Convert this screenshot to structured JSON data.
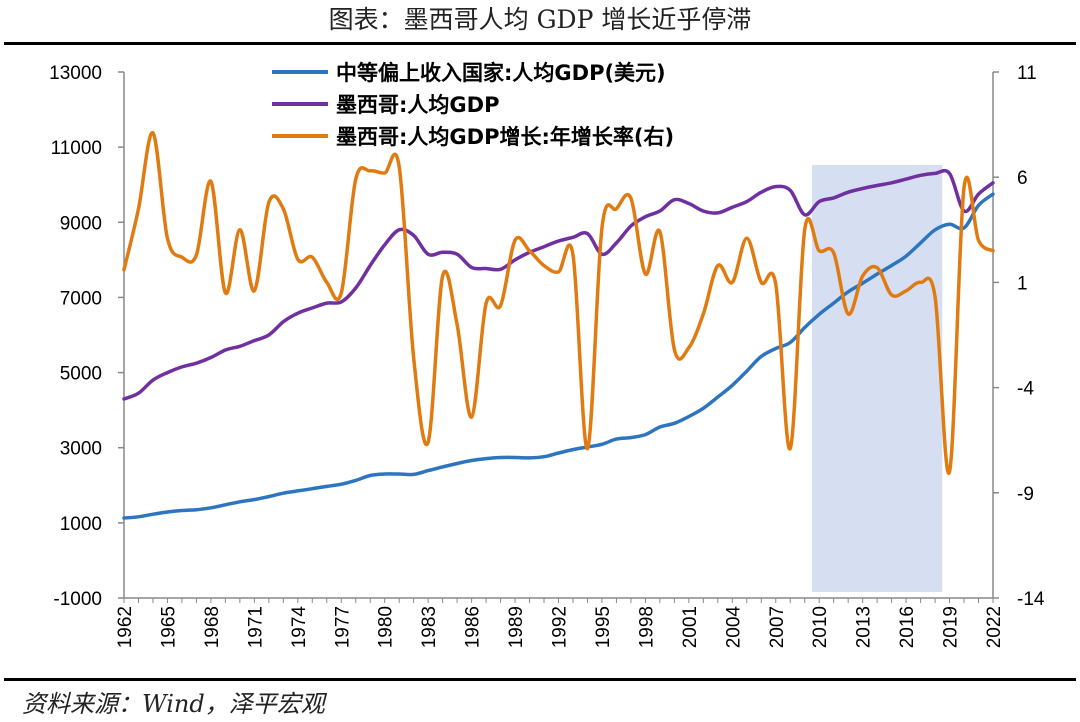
{
  "title": "图表：墨西哥人均 GDP 增长近乎停滞",
  "source": "资料来源：Wind，泽平宏观",
  "colors": {
    "blue": "#2E75C0",
    "purple": "#7030A0",
    "orange": "#E07B12",
    "band": "#D6DFF2"
  },
  "chart_data": {
    "type": "line",
    "x": [
      1962,
      1963,
      1964,
      1965,
      1966,
      1967,
      1968,
      1969,
      1970,
      1971,
      1972,
      1973,
      1974,
      1975,
      1976,
      1977,
      1978,
      1979,
      1980,
      1981,
      1982,
      1983,
      1984,
      1985,
      1986,
      1987,
      1988,
      1989,
      1990,
      1991,
      1992,
      1993,
      1994,
      1995,
      1996,
      1997,
      1998,
      1999,
      2000,
      2001,
      2002,
      2003,
      2004,
      2005,
      2006,
      2007,
      2008,
      2009,
      2010,
      2011,
      2012,
      2013,
      2014,
      2015,
      2016,
      2017,
      2018,
      2019,
      2020,
      2021,
      2022
    ],
    "x_tick_labels": [
      "1962",
      "1965",
      "1968",
      "1971",
      "1974",
      "1977",
      "1980",
      "1983",
      "1986",
      "1989",
      "1992",
      "1995",
      "1998",
      "2001",
      "2004",
      "2007",
      "2010",
      "2013",
      "2016",
      "2019",
      "2022"
    ],
    "y_left": {
      "ticks": [
        "13000",
        "11000",
        "9000",
        "7000",
        "5000",
        "3000",
        "1000",
        "-1000"
      ],
      "range": [
        -1000,
        13000
      ]
    },
    "y_right": {
      "ticks": [
        "11",
        "6",
        "1",
        "-4",
        "-9",
        "-14"
      ],
      "range": [
        -14,
        11
      ]
    },
    "shaded_region": [
      2010,
      2019
    ],
    "series": [
      {
        "name": "中等偏上收入国家:人均GDP(美元)",
        "axis": "left",
        "color": "blue",
        "values": [
          1130,
          1160,
          1230,
          1290,
          1330,
          1350,
          1400,
          1480,
          1560,
          1620,
          1700,
          1790,
          1850,
          1910,
          1970,
          2030,
          2130,
          2260,
          2300,
          2300,
          2290,
          2390,
          2490,
          2580,
          2660,
          2710,
          2740,
          2740,
          2730,
          2760,
          2860,
          2950,
          3020,
          3090,
          3230,
          3270,
          3350,
          3550,
          3650,
          3830,
          4050,
          4350,
          4660,
          5040,
          5430,
          5640,
          5800,
          6200,
          6550,
          6850,
          7150,
          7380,
          7620,
          7850,
          8100,
          8450,
          8800,
          8950,
          8850,
          9450,
          9750
        ]
      },
      {
        "name": "墨西哥:人均GDP",
        "axis": "left",
        "color": "purple",
        "values": [
          4300,
          4450,
          4800,
          5000,
          5150,
          5250,
          5400,
          5600,
          5700,
          5850,
          6000,
          6350,
          6580,
          6720,
          6850,
          6880,
          7250,
          7850,
          8400,
          8800,
          8650,
          8150,
          8200,
          8150,
          7800,
          7770,
          7750,
          8000,
          8200,
          8350,
          8500,
          8600,
          8700,
          8150,
          8450,
          8900,
          9150,
          9300,
          9600,
          9500,
          9300,
          9250,
          9400,
          9550,
          9800,
          9950,
          9850,
          9200,
          9550,
          9650,
          9800,
          9900,
          9980,
          10050,
          10150,
          10250,
          10300,
          10300,
          9300,
          9750,
          10050
        ]
      },
      {
        "name": "墨西哥:人均GDP增长:年增长率(右)",
        "axis": "right",
        "color": "orange",
        "values": [
          1.6,
          4.5,
          8.1,
          3.1,
          2.2,
          2.3,
          5.8,
          0.5,
          3.5,
          0.6,
          4.8,
          4.5,
          2.1,
          2.2,
          1.0,
          0.5,
          5.9,
          6.3,
          6.2,
          6.5,
          -2.6,
          -6.6,
          1.3,
          -1.0,
          -5.4,
          0.0,
          -0.1,
          3.0,
          2.5,
          1.8,
          1.5,
          2.3,
          -6.9,
          3.6,
          4.5,
          5.0,
          1.4,
          3.4,
          -2.2,
          -2.1,
          -0.5,
          1.8,
          1.0,
          3.1,
          1.0,
          0.9,
          -6.9,
          3.5,
          2.5,
          2.4,
          -0.5,
          1.3,
          1.7,
          0.4,
          0.6,
          1.0,
          0.3,
          -8.0,
          5.5,
          3.0,
          2.5
        ]
      }
    ]
  }
}
